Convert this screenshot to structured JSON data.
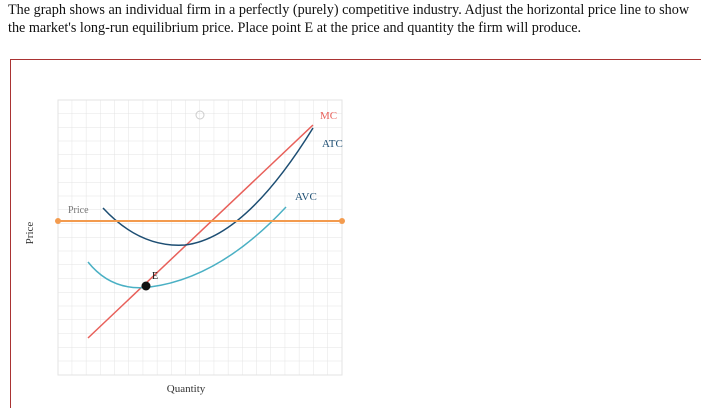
{
  "question": {
    "lines": [
      "The graph shows an individual firm in a perfectly (purely) competitive industry. Adjust the horizontal price line to show",
      "the market's long-run equilibrium price. Place point E at the price and quantity the firm will produce."
    ]
  },
  "graph": {
    "y_axis_label": "Price",
    "x_axis_label": "Quantity",
    "price_line_label": "Price",
    "point_label": "E",
    "curves": {
      "mc": "MC",
      "atc": "ATC",
      "avc": "AVC"
    }
  }
}
